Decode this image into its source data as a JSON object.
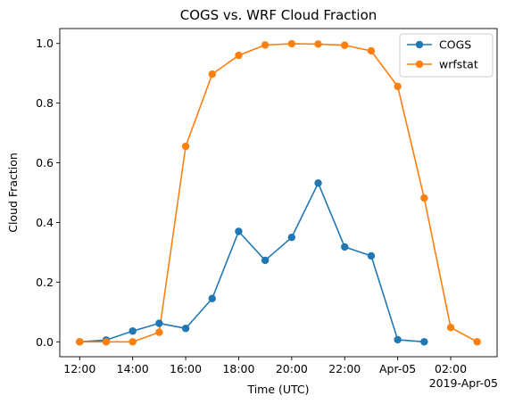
{
  "chart_data": {
    "type": "line",
    "title": "COGS vs. WRF Cloud Fraction",
    "xlabel": "Time (UTC)",
    "ylabel": "Cloud Fraction",
    "x_offset_label": "2019-Apr-05",
    "x_tick_labels": [
      "12:00",
      "14:00",
      "16:00",
      "18:00",
      "20:00",
      "22:00",
      "Apr-05",
      "02:00"
    ],
    "x_tick_times": [
      "2019-04-04T12:00",
      "2019-04-04T14:00",
      "2019-04-04T16:00",
      "2019-04-04T18:00",
      "2019-04-04T20:00",
      "2019-04-04T22:00",
      "2019-04-05T00:00",
      "2019-04-05T02:00"
    ],
    "xlim": [
      "2019-04-04T11:15",
      "2019-04-05T03:45"
    ],
    "y_ticks": [
      0.0,
      0.2,
      0.4,
      0.6,
      0.8,
      1.0
    ],
    "y_tick_labels": [
      "0.0",
      "0.2",
      "0.4",
      "0.6",
      "0.8",
      "1.0"
    ],
    "ylim": [
      -0.05,
      1.05
    ],
    "grid": false,
    "legend_position": "top-right",
    "series": [
      {
        "name": "COGS",
        "color": "#1f77b4",
        "marker": "circle",
        "x": [
          "2019-04-04T12:00",
          "2019-04-04T13:00",
          "2019-04-04T14:00",
          "2019-04-04T15:00",
          "2019-04-04T16:00",
          "2019-04-04T17:00",
          "2019-04-04T18:00",
          "2019-04-04T19:00",
          "2019-04-04T20:00",
          "2019-04-04T21:00",
          "2019-04-04T22:00",
          "2019-04-04T23:00",
          "2019-04-05T00:00",
          "2019-04-05T01:00"
        ],
        "values": [
          0.0,
          0.006,
          0.036,
          0.062,
          0.045,
          0.145,
          0.37,
          0.273,
          0.35,
          0.532,
          0.318,
          0.288,
          0.007,
          0.0
        ]
      },
      {
        "name": "wrfstat",
        "color": "#ff7f0e",
        "marker": "circle",
        "x": [
          "2019-04-04T12:00",
          "2019-04-04T13:00",
          "2019-04-04T14:00",
          "2019-04-04T15:00",
          "2019-04-04T16:00",
          "2019-04-04T17:00",
          "2019-04-04T18:00",
          "2019-04-04T19:00",
          "2019-04-04T20:00",
          "2019-04-04T21:00",
          "2019-04-04T22:00",
          "2019-04-04T23:00",
          "2019-04-05T00:00",
          "2019-04-05T01:00",
          "2019-04-05T02:00",
          "2019-04-05T03:00"
        ],
        "values": [
          0.0,
          0.0,
          0.0,
          0.032,
          0.655,
          0.897,
          0.96,
          0.995,
          0.999,
          0.998,
          0.994,
          0.975,
          0.856,
          0.482,
          0.048,
          0.0
        ]
      }
    ]
  }
}
